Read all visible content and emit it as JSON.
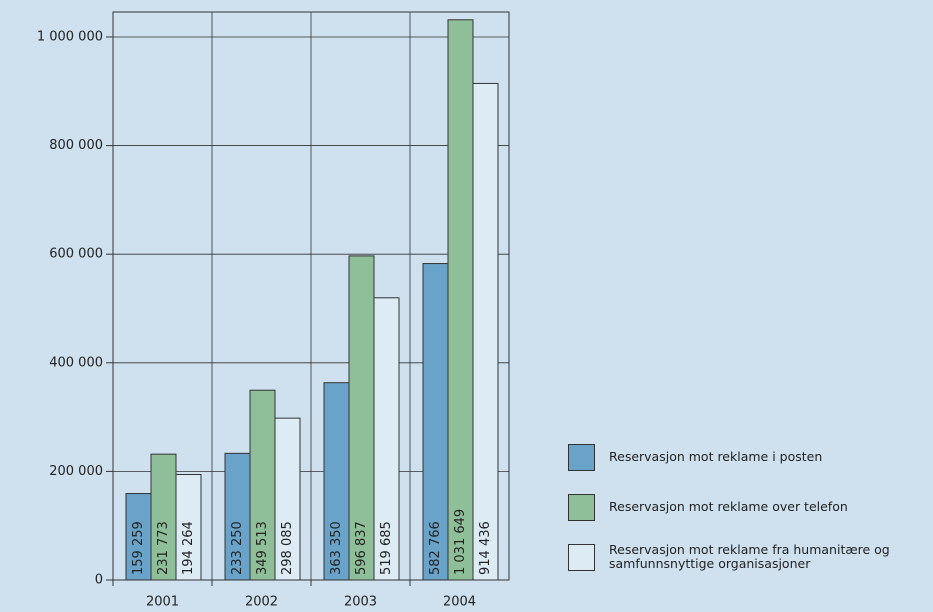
{
  "chart_data": {
    "type": "bar",
    "categories": [
      "2001",
      "2002",
      "2003",
      "2004"
    ],
    "series": [
      {
        "name": "Reservasjon mot reklame i posten",
        "color": "#6aa3c9",
        "values": [
          159259,
          233250,
          363350,
          582766
        ],
        "value_labels": [
          "159 259",
          "233 250",
          "363 350",
          "582 766"
        ]
      },
      {
        "name": "Reservasjon mot reklame over telefon",
        "color": "#8fbf98",
        "values": [
          231773,
          349513,
          596837,
          1031649
        ],
        "value_labels": [
          "231 773",
          "349 513",
          "596 837",
          "1 031 649"
        ]
      },
      {
        "name": "Reservasjon mot reklame fra humanitære og samfunnsnyttige organisasjoner",
        "color": "#dcebf4",
        "values": [
          194264,
          298085,
          519685,
          914436
        ],
        "value_labels": [
          "194 264",
          "298 085",
          "519 685",
          "914 436"
        ]
      }
    ],
    "ylim": [
      0,
      1046000
    ],
    "yticks": [
      0,
      {
        "value": 200000,
        "label": "200 000"
      },
      {
        "value": 400000,
        "label": "400 000"
      },
      {
        "value": 600000,
        "label": "600 000"
      },
      {
        "value": 800000,
        "label": "800 000"
      },
      {
        "value": 1000000,
        "label": "1 000 000"
      }
    ],
    "grid": true,
    "legend": "right"
  }
}
